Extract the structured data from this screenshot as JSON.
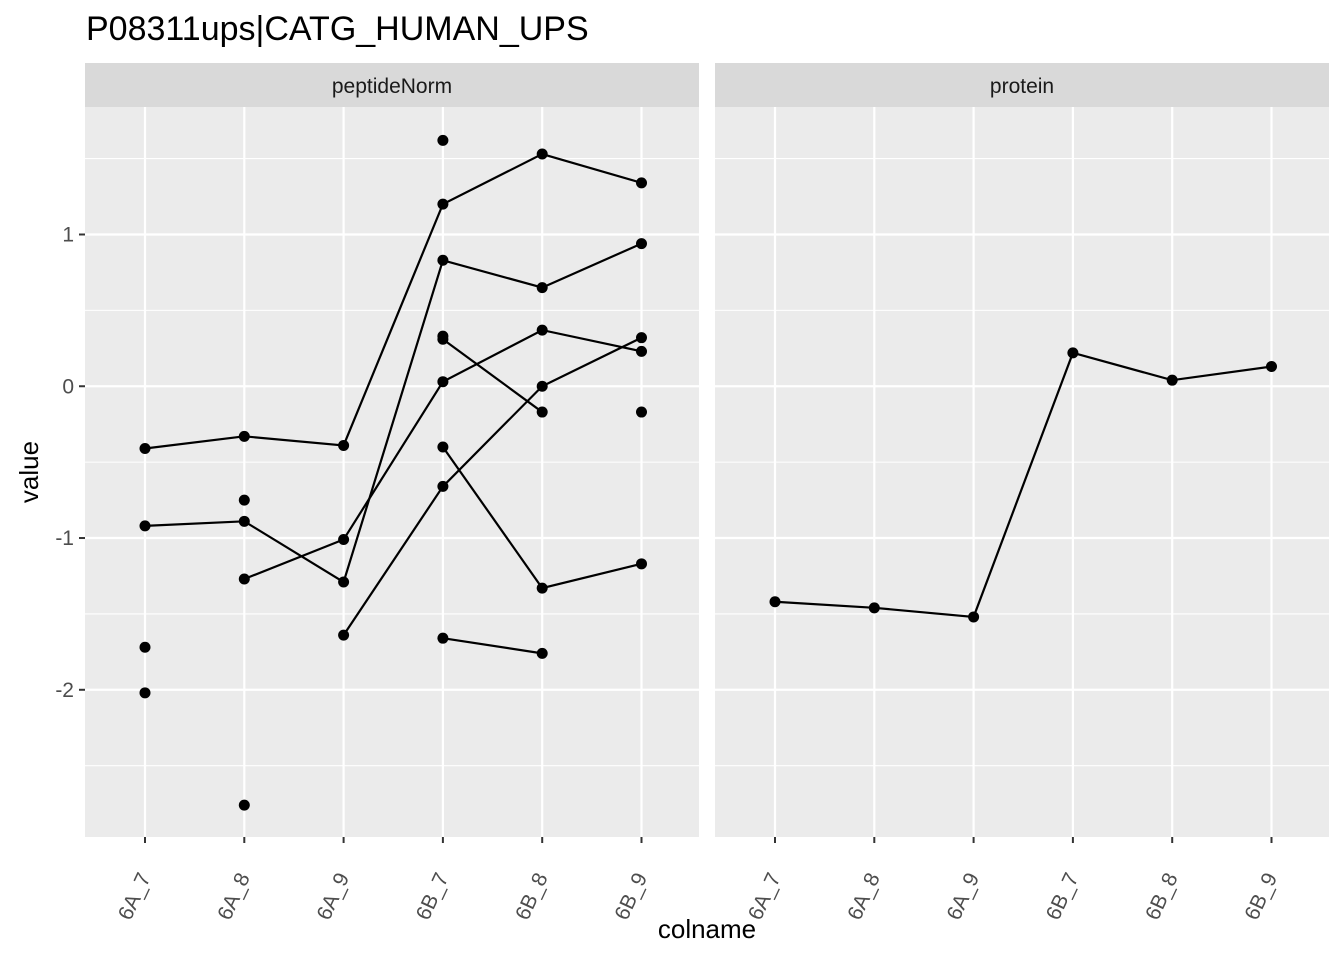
{
  "chart_data": {
    "type": "line",
    "title": "P08311ups|CATG_HUMAN_UPS",
    "xlabel": "colname",
    "ylabel": "value",
    "categories": [
      "6A_7",
      "6A_8",
      "6A_9",
      "6B_7",
      "6B_8",
      "6B_9"
    ],
    "ylim": [
      -2.97,
      1.84
    ],
    "y_ticks": [
      -2,
      -1,
      0,
      1
    ],
    "y_tick_labels": [
      "-2",
      "-1",
      "0",
      "1"
    ],
    "grid": true,
    "facets": [
      {
        "name": "peptideNorm",
        "series": [
          {
            "values": [
              -0.41,
              -0.33,
              -0.39,
              1.2,
              1.53,
              1.34
            ]
          },
          {
            "values": [
              -0.92,
              -0.89,
              -1.29,
              0.83,
              0.65,
              0.94
            ]
          },
          {
            "values": [
              null,
              -1.27,
              -1.01,
              0.03,
              0.37,
              0.23
            ]
          },
          {
            "values": [
              null,
              null,
              -1.64,
              -0.66,
              0.0,
              0.32
            ]
          },
          {
            "values": [
              null,
              null,
              null,
              0.31,
              -0.17,
              null
            ]
          },
          {
            "values": [
              null,
              null,
              null,
              -0.4,
              -1.33,
              -1.17
            ]
          },
          {
            "values": [
              null,
              null,
              null,
              -1.66,
              -1.76,
              null
            ]
          }
        ],
        "points": [
          {
            "x": "6A_7",
            "y": -1.72
          },
          {
            "x": "6A_7",
            "y": -2.02
          },
          {
            "x": "6A_8",
            "y": -0.75
          },
          {
            "x": "6A_8",
            "y": -2.76
          },
          {
            "x": "6B_7",
            "y": 1.62
          },
          {
            "x": "6B_7",
            "y": 0.33
          },
          {
            "x": "6B_9",
            "y": -0.17
          }
        ]
      },
      {
        "name": "protein",
        "series": [
          {
            "values": [
              -1.42,
              -1.46,
              -1.52,
              0.22,
              0.04,
              0.13
            ]
          }
        ],
        "points": []
      }
    ]
  }
}
